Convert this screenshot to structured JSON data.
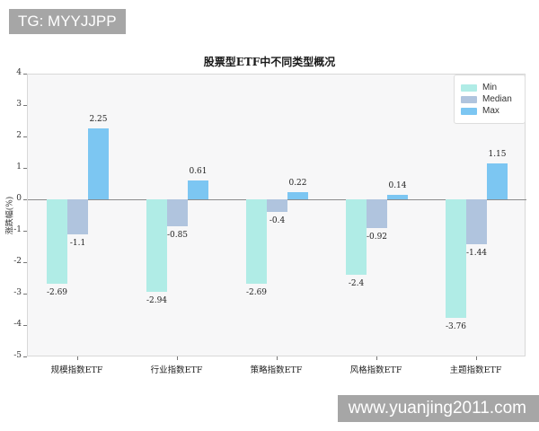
{
  "watermarks": {
    "top": "TG: MYYJJPP",
    "bottom": "www.yuanjing2011.com"
  },
  "colors": {
    "watermark_bg": "#a6a6a6",
    "plot_bg": "#f7f7f8",
    "plot_border": "#d8d8d8",
    "zero_line": "#8c8c8c",
    "tick": "#777777",
    "text": "#222222"
  },
  "chart_data": {
    "type": "bar",
    "title": "股票型ETF中不同类型概况",
    "xlabel": "",
    "ylabel": "涨跌幅(%)",
    "categories": [
      "规模指数ETF",
      "行业指数ETF",
      "策略指数ETF",
      "风格指数ETF",
      "主题指数ETF"
    ],
    "series": [
      {
        "name": "Min",
        "color": "#b0ece6",
        "values": [
          -2.69,
          -2.94,
          -2.69,
          -2.4,
          -3.76
        ]
      },
      {
        "name": "Median",
        "color": "#b0c4de",
        "values": [
          -1.1,
          -0.85,
          -0.4,
          -0.92,
          -1.44
        ]
      },
      {
        "name": "Max",
        "color": "#7cc6f2",
        "values": [
          2.25,
          0.61,
          0.22,
          0.14,
          1.15
        ]
      }
    ],
    "ylim": [
      -5,
      4
    ],
    "yticks": [
      4,
      3,
      2,
      1,
      0,
      -1,
      -2,
      -3,
      -4,
      -5
    ],
    "grid": false,
    "legend_position": "top-right",
    "value_labels": true
  }
}
